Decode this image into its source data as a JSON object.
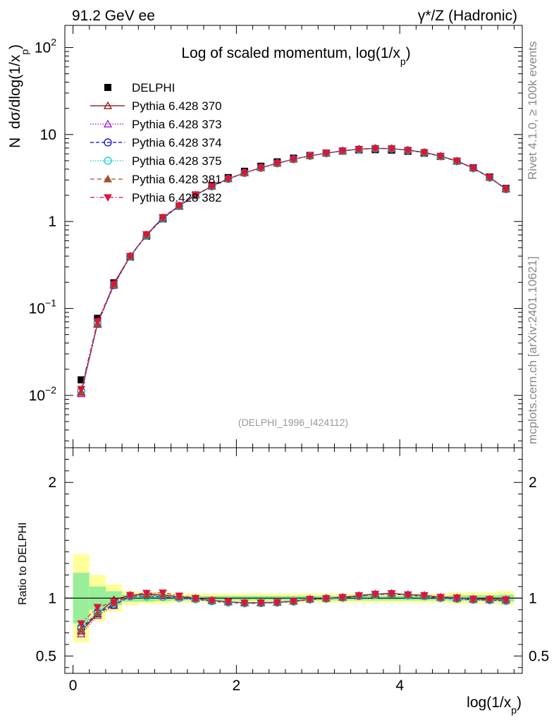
{
  "header": {
    "left": "91.2 GeV ee",
    "right_gamma": "γ",
    "right_rest": "*/Z (Hadronic)"
  },
  "side_text": {
    "rivet": "Rivet 4.1.0, ≥ 100k events",
    "mcplots": "mcplots.cern.ch [arXiv:2401.10621]"
  },
  "chart_data": [
    {
      "type": "scatter",
      "panel": "main",
      "title": "Log of scaled momentum, log(1/x",
      "title_sub": "p",
      "title_close": ")",
      "ylabel_prefix": "N",
      "ylabel_main": "dσ/dlog(1/x",
      "ylabel_sub": "p",
      "ylabel_close": ")",
      "yscale": "log",
      "xlim": [
        -0.1,
        5.5
      ],
      "ylim": [
        0.0025,
        180
      ],
      "yticks": [
        {
          "value": 0.01,
          "base": "10",
          "exp": "−2"
        },
        {
          "value": 0.1,
          "base": "10",
          "exp": "−1"
        },
        {
          "value": 1,
          "base": "1",
          "exp": ""
        },
        {
          "value": 10,
          "base": "10",
          "exp": ""
        },
        {
          "value": 100,
          "base": "10",
          "exp": "2"
        }
      ],
      "analysis_tag": "(DELPHI_1996_I424112)",
      "x": [
        0.1,
        0.3,
        0.5,
        0.7,
        0.9,
        1.1,
        1.3,
        1.5,
        1.7,
        1.9,
        2.1,
        2.3,
        2.5,
        2.7,
        2.9,
        3.1,
        3.3,
        3.5,
        3.7,
        3.9,
        4.1,
        4.3,
        4.5,
        4.7,
        4.9,
        5.1,
        5.3
      ],
      "series": [
        {
          "name": "DELPHI",
          "marker": "square",
          "color": "#000000",
          "dash": "none",
          "values": [
            0.0151,
            0.077,
            0.197,
            0.39,
            0.68,
            1.07,
            1.5,
            2.02,
            2.6,
            3.2,
            3.78,
            4.32,
            4.85,
            5.35,
            5.75,
            6.12,
            6.45,
            6.65,
            6.7,
            6.62,
            6.42,
            6.1,
            5.6,
            4.95,
            4.15,
            3.25,
            2.4
          ]
        },
        {
          "name": "Pythia 6.428 370",
          "marker": "triangle-open",
          "color": "#8b0000",
          "dash": "none",
          "values": [
            0.0108,
            0.0665,
            0.194,
            0.4,
            0.705,
            1.1,
            1.52,
            2.02,
            2.55,
            3.1,
            3.63,
            4.15,
            4.68,
            5.21,
            5.7,
            6.11,
            6.5,
            6.8,
            6.94,
            6.9,
            6.62,
            6.25,
            5.65,
            4.97,
            4.12,
            3.22,
            2.37
          ]
        },
        {
          "name": "Pythia 6.428 373",
          "marker": "triangle-open",
          "color": "#9400d3",
          "dash": "1.5,2",
          "values": [
            0.0104,
            0.0655,
            0.184,
            0.398,
            0.7,
            1.09,
            1.51,
            2.01,
            2.54,
            3.09,
            3.62,
            4.14,
            4.67,
            5.2,
            5.69,
            6.1,
            6.48,
            6.78,
            6.92,
            6.88,
            6.6,
            6.22,
            5.62,
            4.93,
            4.1,
            3.2,
            2.35
          ]
        },
        {
          "name": "Pythia 6.428 374",
          "marker": "circle-open",
          "color": "#0000cd",
          "dash": "5,3",
          "values": [
            0.0112,
            0.067,
            0.185,
            0.396,
            0.69,
            1.08,
            1.5,
            2.0,
            2.53,
            3.08,
            3.61,
            4.13,
            4.66,
            5.19,
            5.68,
            6.09,
            6.47,
            6.76,
            6.9,
            6.86,
            6.58,
            6.2,
            5.6,
            4.92,
            4.09,
            3.19,
            2.34
          ]
        },
        {
          "name": "Pythia 6.428 375",
          "marker": "circle-open",
          "color": "#00ced1",
          "dash": "1.5,2",
          "values": [
            0.0114,
            0.068,
            0.187,
            0.395,
            0.69,
            1.08,
            1.5,
            2.0,
            2.53,
            3.08,
            3.61,
            4.13,
            4.66,
            5.19,
            5.68,
            6.09,
            6.47,
            6.76,
            6.9,
            6.86,
            6.58,
            6.2,
            5.6,
            4.92,
            4.09,
            3.19,
            2.34
          ]
        },
        {
          "name": "Pythia 6.428 381",
          "marker": "triangle-filled",
          "color": "#a0522d",
          "dash": "6,4",
          "values": [
            0.011,
            0.067,
            0.188,
            0.4,
            0.7,
            1.1,
            1.52,
            2.02,
            2.55,
            3.1,
            3.63,
            4.15,
            4.68,
            5.21,
            5.7,
            6.11,
            6.5,
            6.8,
            6.94,
            6.9,
            6.62,
            6.25,
            5.65,
            4.97,
            4.12,
            3.22,
            2.37
          ]
        },
        {
          "name": "Pythia 6.428 382",
          "marker": "triangle-down-filled",
          "color": "#dc143c",
          "dash": "6,3,1.5,3",
          "values": [
            0.0118,
            0.071,
            0.19,
            0.4,
            0.71,
            1.12,
            1.53,
            2.02,
            2.55,
            3.1,
            3.63,
            4.15,
            4.68,
            5.21,
            5.7,
            6.11,
            6.5,
            6.8,
            6.94,
            6.9,
            6.62,
            6.25,
            5.65,
            4.97,
            4.12,
            3.22,
            2.37
          ]
        }
      ]
    },
    {
      "type": "scatter",
      "panel": "ratio",
      "ylabel": "Ratio to DELPHI",
      "xlabel_main": "log(1/x",
      "xlabel_sub": "p",
      "xlabel_close": ")",
      "xlim": [
        -0.1,
        5.5
      ],
      "ylim": [
        0.35,
        2.3
      ],
      "xticks": [
        {
          "value": 0,
          "label": "0"
        },
        {
          "value": 2,
          "label": "2"
        },
        {
          "value": 4,
          "label": "4"
        }
      ],
      "yticks": [
        {
          "value": 0.5,
          "label": "0.5"
        },
        {
          "value": 1,
          "label": "1"
        },
        {
          "value": 2,
          "label": "2"
        }
      ],
      "bin_edges": [
        0.0,
        0.2,
        0.4,
        0.6,
        0.8,
        1.0,
        1.2,
        1.4,
        1.6,
        1.8,
        2.0,
        2.2,
        2.4,
        2.6,
        2.8,
        3.0,
        3.2,
        3.4,
        3.6,
        3.8,
        4.0,
        4.2,
        4.4,
        4.6,
        4.8,
        5.0,
        5.2,
        5.4
      ],
      "band_total": [
        0.38,
        0.2,
        0.12,
        0.06,
        0.05,
        0.05,
        0.04,
        0.04,
        0.04,
        0.04,
        0.04,
        0.04,
        0.04,
        0.04,
        0.04,
        0.04,
        0.04,
        0.04,
        0.04,
        0.04,
        0.04,
        0.04,
        0.04,
        0.05,
        0.05,
        0.05,
        0.06
      ],
      "band_stat": [
        0.22,
        0.1,
        0.06,
        0.03,
        0.03,
        0.025,
        0.02,
        0.02,
        0.02,
        0.02,
        0.02,
        0.02,
        0.02,
        0.02,
        0.02,
        0.02,
        0.02,
        0.02,
        0.02,
        0.02,
        0.02,
        0.02,
        0.02,
        0.025,
        0.025,
        0.025,
        0.03
      ],
      "band_colors": {
        "total": "#ffff99",
        "stat": "#99ee99"
      },
      "series": [
        {
          "name": "Pythia 6.428 370",
          "values": [
            0.715,
            0.864,
            0.985,
            1.026,
            1.037,
            1.028,
            1.013,
            1.0,
            0.981,
            0.969,
            0.96,
            0.961,
            0.965,
            0.974,
            0.991,
            0.998,
            1.008,
            1.023,
            1.036,
            1.042,
            1.031,
            1.025,
            1.009,
            1.004,
            0.993,
            0.991,
            0.988
          ]
        },
        {
          "name": "Pythia 6.428 373",
          "values": [
            0.69,
            0.85,
            0.935,
            1.02,
            1.03,
            1.02,
            1.007,
            0.995,
            0.977,
            0.966,
            0.958,
            0.958,
            0.963,
            0.972,
            0.99,
            0.997,
            1.005,
            1.02,
            1.033,
            1.039,
            1.028,
            1.02,
            1.004,
            0.996,
            0.988,
            0.985,
            0.98
          ]
        },
        {
          "name": "Pythia 6.428 374",
          "values": [
            0.74,
            0.87,
            0.94,
            1.015,
            1.015,
            1.01,
            1.0,
            0.99,
            0.973,
            0.962,
            0.955,
            0.956,
            0.961,
            0.97,
            0.988,
            0.995,
            1.003,
            1.017,
            1.03,
            1.036,
            1.025,
            1.016,
            1.0,
            0.994,
            0.986,
            0.982,
            0.975
          ]
        },
        {
          "name": "Pythia 6.428 375",
          "values": [
            0.755,
            0.883,
            0.95,
            1.013,
            1.015,
            1.01,
            1.0,
            0.99,
            0.973,
            0.962,
            0.955,
            0.956,
            0.961,
            0.97,
            0.988,
            0.995,
            1.003,
            1.017,
            1.03,
            1.036,
            1.025,
            1.016,
            1.0,
            0.994,
            0.986,
            0.982,
            0.975
          ]
        },
        {
          "name": "Pythia 6.428 381",
          "values": [
            0.728,
            0.87,
            0.955,
            1.026,
            1.03,
            1.028,
            1.013,
            1.0,
            0.981,
            0.969,
            0.96,
            0.961,
            0.965,
            0.974,
            0.991,
            0.998,
            1.008,
            1.023,
            1.036,
            1.042,
            1.031,
            1.025,
            1.009,
            1.004,
            0.993,
            0.991,
            0.988
          ]
        },
        {
          "name": "Pythia 6.428 382",
          "values": [
            0.78,
            0.922,
            0.965,
            1.026,
            1.044,
            1.047,
            1.02,
            1.0,
            0.981,
            0.969,
            0.96,
            0.961,
            0.965,
            0.974,
            0.991,
            0.998,
            1.008,
            1.023,
            1.036,
            1.042,
            1.031,
            1.025,
            1.009,
            1.004,
            0.993,
            0.991,
            0.988
          ]
        }
      ]
    }
  ]
}
